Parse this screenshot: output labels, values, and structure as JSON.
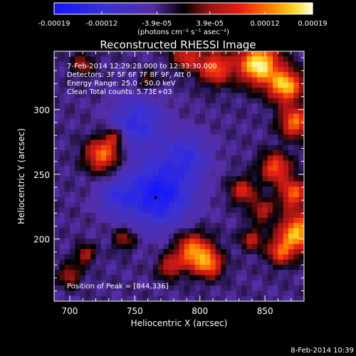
{
  "chart_data": {
    "type": "heatmap",
    "title": "Reconstructed RHESSI Image",
    "xlabel": "Heliocentric X (arcsec)",
    "ylabel": "Heliocentric Y (arcsec)",
    "xlim": [
      688,
      880
    ],
    "ylim": [
      152,
      345
    ],
    "x_ticks": [
      {
        "value": 700,
        "label": "700"
      },
      {
        "value": 750,
        "label": "750"
      },
      {
        "value": 800,
        "label": "800"
      },
      {
        "value": 850,
        "label": "850"
      }
    ],
    "y_ticks": [
      {
        "value": 200,
        "label": "200"
      },
      {
        "value": 250,
        "label": "250"
      },
      {
        "value": 300,
        "label": "300"
      }
    ],
    "colorbar": {
      "label": "(photons cm⁻² s⁻¹ asec⁻²)",
      "range": [
        -0.00019,
        0.00019
      ],
      "ticks": [
        {
          "value": -0.00019,
          "label": "-0.00019"
        },
        {
          "value": -0.00012,
          "label": "-0.00012"
        },
        {
          "value": -3.9e-05,
          "label": "-3.9e-05"
        },
        {
          "value": 3.9e-05,
          "label": "3.9e-05"
        },
        {
          "value": 0.00012,
          "label": "0.00012"
        },
        {
          "value": 0.00019,
          "label": "0.00019"
        }
      ]
    },
    "annotations": [
      "7-Feb-2014 12:29:28.000 to 12:33:30.000",
      "Detectors: 3F 5F 6F 7F 8F 9F, Att 0",
      "Energy Range: 25.0 - 50.0 keV",
      "Clean     Total counts: 5.73E+03"
    ],
    "peak_note": "Position of Peak = [844,336]",
    "marker": {
      "x": 766,
      "y": 232
    },
    "sources": [
      {
        "x": 725,
        "y": 265,
        "sigma": 9,
        "amp": 1.0
      },
      {
        "x": 734,
        "y": 278,
        "sigma": 5,
        "amp": 0.6
      },
      {
        "x": 795,
        "y": 190,
        "sigma": 10,
        "amp": 1.1
      },
      {
        "x": 808,
        "y": 180,
        "sigma": 7,
        "amp": 0.8
      },
      {
        "x": 776,
        "y": 178,
        "sigma": 6,
        "amp": 0.6
      },
      {
        "x": 712,
        "y": 188,
        "sigma": 5,
        "amp": 0.6
      },
      {
        "x": 700,
        "y": 172,
        "sigma": 6,
        "amp": 0.55
      },
      {
        "x": 742,
        "y": 200,
        "sigma": 6,
        "amp": 0.5
      },
      {
        "x": 845,
        "y": 335,
        "sigma": 11,
        "amp": 1.4
      },
      {
        "x": 866,
        "y": 318,
        "sigma": 9,
        "amp": 1.2
      },
      {
        "x": 873,
        "y": 290,
        "sigma": 8,
        "amp": 1.0
      },
      {
        "x": 812,
        "y": 332,
        "sigma": 9,
        "amp": 0.9
      },
      {
        "x": 790,
        "y": 342,
        "sigma": 8,
        "amp": 0.7
      },
      {
        "x": 858,
        "y": 255,
        "sigma": 8,
        "amp": 0.9
      },
      {
        "x": 872,
        "y": 235,
        "sigma": 8,
        "amp": 0.9
      },
      {
        "x": 833,
        "y": 237,
        "sigma": 7,
        "amp": 0.7
      },
      {
        "x": 848,
        "y": 222,
        "sigma": 6,
        "amp": 0.6
      },
      {
        "x": 875,
        "y": 205,
        "sigma": 10,
        "amp": 1.2
      },
      {
        "x": 862,
        "y": 190,
        "sigma": 7,
        "amp": 0.8
      },
      {
        "x": 840,
        "y": 200,
        "sigma": 6,
        "amp": 0.6
      },
      {
        "x": 710,
        "y": 335,
        "sigma": 6,
        "amp": 0.5
      },
      {
        "x": 760,
        "y": 322,
        "sigma": 5,
        "amp": 0.4
      }
    ],
    "holes": [
      {
        "x": 768,
        "y": 235,
        "sigma": 18,
        "amp": 0.9
      },
      {
        "x": 752,
        "y": 290,
        "sigma": 14,
        "amp": 0.6
      },
      {
        "x": 735,
        "y": 232,
        "sigma": 10,
        "amp": 0.4
      },
      {
        "x": 790,
        "y": 265,
        "sigma": 12,
        "amp": 0.5
      }
    ]
  },
  "footer": {
    "date": "8-Feb-2014 10:39"
  }
}
